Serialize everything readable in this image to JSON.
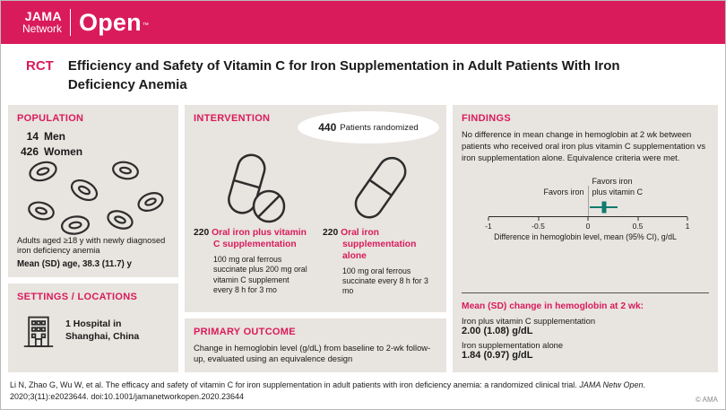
{
  "colors": {
    "brand_pink": "#d91b5c",
    "panel_gray": "#e8e4df",
    "marker_teal": "#0e7b6e"
  },
  "header": {
    "brand_top": "JAMA",
    "brand_bottom": "Network",
    "product": "Open",
    "trademark": "™"
  },
  "title": {
    "study_type": "RCT",
    "text": "Efficiency and Safety of Vitamin C for Iron Supplementation in Adult Patients With Iron Deficiency Anemia"
  },
  "population": {
    "heading": "POPULATION",
    "men": {
      "count": "14",
      "label": "Men"
    },
    "women": {
      "count": "426",
      "label": "Women"
    },
    "description": "Adults aged ≥18 y with newly diagnosed iron deficiency anemia",
    "age_line": "Mean (SD) age, 38.3 (11.7) y"
  },
  "settings": {
    "heading": "SETTINGS / LOCATIONS",
    "text": "1 Hospital in Shanghai, China"
  },
  "intervention": {
    "heading": "INTERVENTION",
    "randomized": {
      "count": "440",
      "label": "Patients randomized"
    },
    "arm1": {
      "count": "220",
      "label": "Oral iron plus vitamin C supplementation",
      "detail": "100 mg oral ferrous succinate plus 200 mg oral vitamin C supplement every 8 h for 3 mo"
    },
    "arm2": {
      "count": "220",
      "label": "Oral iron supplementation alone",
      "detail": "100 mg oral ferrous succinate every 8 h for 3 mo"
    }
  },
  "primary_outcome": {
    "heading": "PRIMARY OUTCOME",
    "text": "Change in hemoglobin level (g/dL) from baseline to 2-wk follow-up, evaluated using an equivalence design"
  },
  "findings": {
    "heading": "FINDINGS",
    "summary": "No difference in mean change in hemoglobin at 2 wk between patients who received oral iron plus vitamin C supplementation vs iron supplementation alone. Equivalence criteria were met.",
    "plot": {
      "type": "forest",
      "left_label": "Favors iron",
      "right_label_line1": "Favors iron",
      "right_label_line2": "plus vitamin C",
      "axis_label": "Difference in hemoglobin level, mean (95% CI), g/dL",
      "xmin": -1,
      "xmax": 1,
      "ticks": [
        "-1",
        "-0.5",
        "0",
        "0.5",
        "1"
      ],
      "point": 0.16,
      "ci_low": 0.02,
      "ci_high": 0.3
    },
    "results_heading": "Mean (SD) change in hemoglobin at 2 wk:",
    "result1": {
      "label": "Iron plus vitamin C supplementation",
      "value": "2.00 (1.08) g/dL"
    },
    "result2": {
      "label": "Iron supplementation alone",
      "value": "1.84 (0.97) g/dL"
    }
  },
  "footer": {
    "citation_before_journal": "Li N, Zhao G, Wu W, et al. The efficacy and safety of vitamin C for iron supplementation in adult patients with iron deficiency anemia: a randomized clinical trial. ",
    "citation_journal": "JAMA Netw Open",
    "citation_after_journal": ". 2020;3(11):e2023644. doi:10.1001/jamanetworkopen.2020.23644",
    "copyright": "© AMA"
  }
}
